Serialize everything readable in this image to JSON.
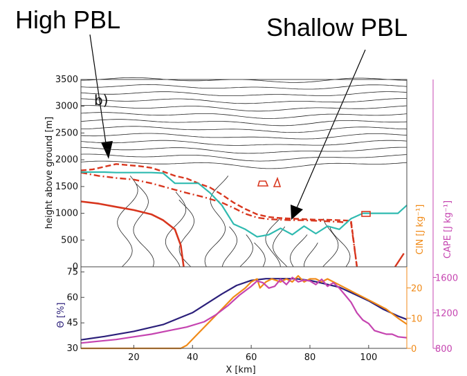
{
  "annotations": {
    "left": "High PBL",
    "right": "Shallow PBL"
  },
  "colors": {
    "isentrope": "#222222",
    "pbl": "#d8361e",
    "cloud_base": "#2fbab0",
    "theta": "#2b1f7a",
    "cin": "#f08a17",
    "cape": "#c544b0"
  },
  "chart_data": [
    {
      "type": "line",
      "panel_label": "b)",
      "ylabel": "height above ground [m]",
      "xlim": [
        2,
        113
      ],
      "ylim": [
        0,
        3500
      ],
      "y_ticks": [
        0,
        500,
        1000,
        1500,
        2000,
        2500,
        3000,
        3500
      ],
      "isentropes": {
        "count": 25,
        "min_height": 1950,
        "spacing": 130,
        "vertical_contours_x": [
          16,
          24,
          33,
          39,
          47,
          53,
          57,
          62,
          67,
          71,
          76,
          81,
          86,
          91
        ]
      },
      "series": [
        {
          "style": "dashed",
          "x": [
            2,
            6,
            10,
            14,
            18,
            22,
            26,
            30,
            34,
            38,
            42,
            46,
            50,
            54,
            58,
            62,
            66,
            70,
            74,
            78,
            82,
            86,
            90,
            94,
            96
          ],
          "y": [
            1800,
            1820,
            1870,
            1920,
            1900,
            1880,
            1850,
            1780,
            1700,
            1650,
            1560,
            1480,
            1350,
            1200,
            1080,
            980,
            930,
            910,
            900,
            890,
            880,
            880,
            870,
            860,
            0
          ]
        },
        {
          "style": "dash-dot",
          "x": [
            2,
            8,
            14,
            20,
            26,
            32,
            38,
            44,
            50,
            54,
            58,
            62,
            66,
            70,
            74,
            78,
            82,
            86,
            90,
            94,
            96
          ],
          "y": [
            1760,
            1700,
            1660,
            1630,
            1560,
            1470,
            1380,
            1300,
            1200,
            1100,
            990,
            920,
            890,
            880,
            870,
            870,
            860,
            850,
            840,
            820,
            0
          ]
        },
        {
          "style": "solid",
          "x": [
            2,
            8,
            14,
            20,
            26,
            30,
            34,
            36,
            37
          ],
          "y": [
            1220,
            1180,
            1120,
            1060,
            980,
            870,
            700,
            400,
            0
          ]
        },
        {
          "style": "solid",
          "x": [
            2,
            6,
            10,
            14,
            18,
            22,
            26,
            30,
            34,
            38,
            42,
            46,
            50,
            54,
            58,
            62,
            66,
            70,
            74,
            78,
            82,
            86,
            90,
            94,
            98,
            102,
            106,
            110,
            113
          ],
          "y": [
            1770,
            1770,
            1770,
            1760,
            1760,
            1760,
            1760,
            1750,
            1560,
            1560,
            1560,
            1380,
            1150,
            800,
            700,
            560,
            600,
            720,
            600,
            760,
            620,
            760,
            700,
            900,
            1000,
            1000,
            1000,
            1000,
            1150
          ]
        }
      ]
    },
    {
      "type": "line",
      "xlabel": "X [km]",
      "xlim": [
        2,
        113
      ],
      "x_ticks": [
        20,
        40,
        60,
        80,
        100
      ],
      "left_axis": {
        "label": "Θ [%]",
        "ticks": [
          30,
          45,
          60,
          75
        ],
        "range": [
          30,
          78
        ]
      },
      "right_axis_cin": {
        "label": "CIN [J kg⁻¹]",
        "ticks": [
          0,
          10,
          20
        ],
        "range": [
          0,
          27
        ]
      },
      "right_axis_cape": {
        "label": "CAPE [J kg⁻¹]",
        "ticks": [
          800,
          1200,
          1600
        ],
        "range": [
          800,
          1720
        ]
      },
      "series": [
        {
          "axis": "left",
          "x": [
            2,
            10,
            20,
            30,
            40,
            50,
            55,
            60,
            65,
            70,
            75,
            80,
            85,
            90,
            95,
            100,
            105,
            110,
            113
          ],
          "y": [
            35,
            37,
            40,
            44,
            51,
            62,
            67,
            70,
            71,
            71,
            71,
            70,
            68,
            66,
            62,
            58,
            53,
            49,
            47
          ]
        },
        {
          "axis": "cin",
          "x": [
            2,
            10,
            20,
            30,
            36,
            38,
            40,
            42,
            46,
            50,
            54,
            58,
            60,
            62,
            63,
            65,
            67,
            70,
            72,
            74,
            76,
            78,
            80,
            82,
            84,
            86,
            88,
            90,
            94,
            98,
            102,
            106,
            110,
            113
          ],
          "y": [
            0,
            0,
            0,
            0,
            0,
            1,
            3,
            5,
            9,
            13,
            17,
            20,
            22,
            23,
            20,
            22,
            23,
            22,
            23,
            22,
            24,
            22,
            23,
            23,
            22,
            23,
            22,
            21,
            19,
            17,
            15,
            13,
            10,
            8
          ]
        },
        {
          "axis": "cape",
          "x": [
            2,
            8,
            14,
            20,
            26,
            32,
            38,
            44,
            48,
            52,
            56,
            60,
            62,
            64,
            66,
            68,
            70,
            72,
            74,
            76,
            78,
            80,
            82,
            84,
            86,
            88,
            90,
            92,
            94,
            96,
            98,
            100,
            102,
            104,
            106,
            108,
            110,
            113
          ],
          "y": [
            860,
            880,
            900,
            930,
            960,
            1000,
            1040,
            1100,
            1180,
            1280,
            1400,
            1500,
            1560,
            1540,
            1480,
            1500,
            1580,
            1520,
            1600,
            1550,
            1570,
            1560,
            1520,
            1580,
            1500,
            1540,
            1480,
            1400,
            1320,
            1200,
            1120,
            1080,
            1000,
            980,
            960,
            960,
            930,
            920
          ]
        }
      ]
    }
  ]
}
